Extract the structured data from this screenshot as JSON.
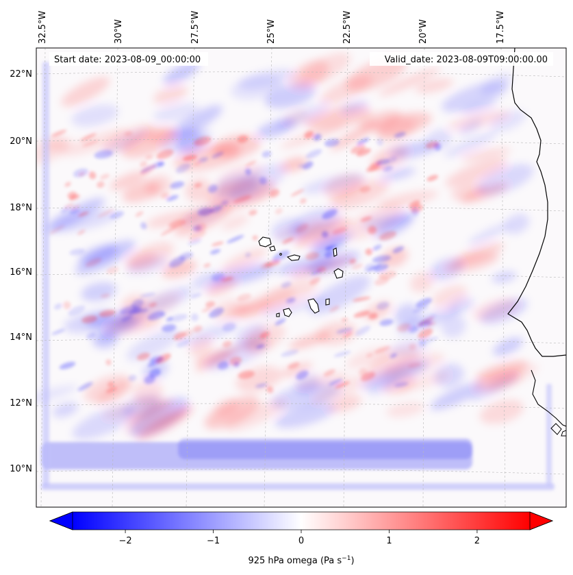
{
  "map": {
    "start_label": "Start date: 2023-08-09_00:00:00",
    "valid_label": "Valid_date: 2023-08-09T09:00:00.00",
    "lon_labels": [
      "32.5°W",
      "30°W",
      "27.5°W",
      "25°W",
      "22.5°W",
      "20°W",
      "17.5°W"
    ],
    "lat_labels": [
      "22°N",
      "20°N",
      "18°N",
      "16°N",
      "14°N",
      "12°N",
      "10°N"
    ],
    "gridlines": true
  },
  "colorbar": {
    "label_main": "925 hPa omega (Pa s",
    "label_exp": "−1",
    "label_end": ")",
    "ticks": [
      "−2",
      "−1",
      "0",
      "1",
      "2"
    ],
    "tick_values": [
      -2,
      -1,
      0,
      1,
      2
    ],
    "range": [
      -2.6,
      2.6
    ],
    "colormap": "bwr",
    "extend": "both",
    "colors": {
      "negative": "#0000ff",
      "zero": "#ffffff",
      "positive": "#ff0000"
    }
  }
}
